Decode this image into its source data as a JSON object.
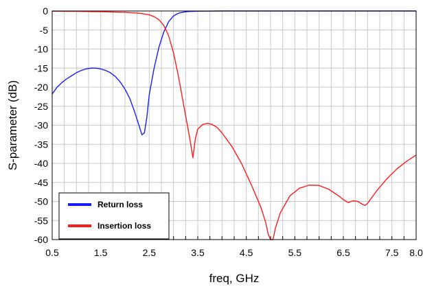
{
  "chart_data": {
    "type": "line",
    "title": "",
    "xlabel": "freq, GHz",
    "ylabel": "S-parameter (dB)",
    "xlim": [
      0.5,
      8.0
    ],
    "ylim": [
      -60,
      0
    ],
    "xticks": [
      0.5,
      1.5,
      2.5,
      3.5,
      4.5,
      5.5,
      6.5,
      7.5,
      8.0
    ],
    "xtick_labels": [
      "0.5",
      "1.5",
      "2.5",
      "3.5",
      "4.5",
      "5.5",
      "6.5",
      "7.5",
      "8.0"
    ],
    "yticks": [
      0,
      -5,
      -10,
      -15,
      -20,
      -25,
      -30,
      -35,
      -40,
      -45,
      -50,
      -55,
      -60
    ],
    "ytick_labels": [
      "0",
      "-5",
      "-10",
      "-15",
      "-20",
      "-25",
      "-30",
      "-35",
      "-40",
      "-45",
      "-50",
      "-55",
      "-60"
    ],
    "grid": true,
    "legend_position": "bottom-left",
    "series": [
      {
        "name": "Return loss",
        "color": "#1a1aff",
        "x": [
          0.5,
          0.6,
          0.7,
          0.8,
          0.9,
          1.0,
          1.1,
          1.2,
          1.3,
          1.4,
          1.5,
          1.6,
          1.7,
          1.8,
          1.9,
          2.0,
          2.1,
          2.2,
          2.3,
          2.35,
          2.4,
          2.45,
          2.5,
          2.6,
          2.7,
          2.8,
          2.9,
          3.0,
          3.1,
          3.2,
          3.3,
          3.5,
          4.0,
          5.0,
          6.0,
          7.0,
          8.0
        ],
        "y": [
          -21.8,
          -20.0,
          -18.8,
          -17.8,
          -17.0,
          -16.2,
          -15.6,
          -15.2,
          -15.0,
          -15.0,
          -15.2,
          -15.6,
          -16.2,
          -17.2,
          -18.6,
          -20.5,
          -23.0,
          -26.5,
          -30.5,
          -32.5,
          -32.0,
          -28.0,
          -22.0,
          -15.0,
          -9.5,
          -5.5,
          -2.8,
          -1.3,
          -0.6,
          -0.3,
          -0.15,
          -0.05,
          0,
          0,
          0,
          0,
          0
        ]
      },
      {
        "name": "Insertion loss",
        "color": "#ff1a1a",
        "x": [
          0.5,
          1.0,
          1.5,
          2.0,
          2.3,
          2.5,
          2.6,
          2.7,
          2.8,
          2.9,
          3.0,
          3.1,
          3.2,
          3.3,
          3.35,
          3.4,
          3.45,
          3.5,
          3.6,
          3.7,
          3.8,
          3.9,
          4.0,
          4.2,
          4.4,
          4.6,
          4.8,
          4.9,
          4.95,
          5.0,
          5.05,
          5.1,
          5.2,
          5.4,
          5.6,
          5.8,
          6.0,
          6.2,
          6.4,
          6.5,
          6.6,
          6.7,
          6.8,
          6.9,
          6.95,
          7.0,
          7.2,
          7.4,
          7.6,
          7.8,
          8.0
        ],
        "y": [
          -0.05,
          -0.1,
          -0.2,
          -0.35,
          -0.6,
          -1.0,
          -1.5,
          -2.3,
          -3.8,
          -6.5,
          -11.0,
          -17.0,
          -24.0,
          -31.0,
          -34.5,
          -38.5,
          -33.5,
          -31.0,
          -29.8,
          -29.5,
          -29.8,
          -30.6,
          -32.0,
          -35.5,
          -40.0,
          -45.5,
          -51.5,
          -55.5,
          -58.5,
          -60,
          -60,
          -57.0,
          -53.0,
          -48.5,
          -46.5,
          -45.7,
          -45.8,
          -46.8,
          -48.5,
          -49.5,
          -50.3,
          -49.8,
          -50.0,
          -50.8,
          -51.0,
          -50.5,
          -47.0,
          -44.0,
          -41.5,
          -39.5,
          -37.8
        ]
      }
    ]
  }
}
